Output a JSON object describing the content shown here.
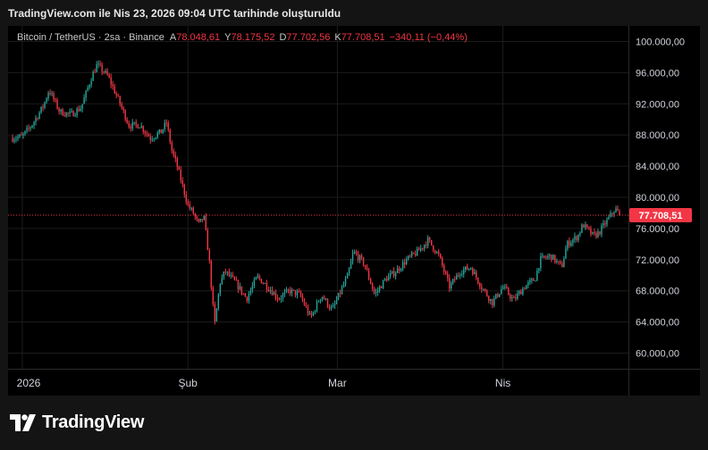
{
  "header": {
    "title": "TradingView.com ile Nis 23, 2026 09:04 UTC tarihinde oluşturuldu"
  },
  "legend": {
    "symbol": "Bitcoin / TetherUS · 2sa · Binance",
    "open_label": "A",
    "open": "78.048,61",
    "high_label": "Y",
    "high": "78.175,52",
    "low_label": "D",
    "low": "77.702,56",
    "close_label": "K",
    "close": "77.708,51",
    "change": "−340,11 (−0,44%)"
  },
  "colors": {
    "up": "#26a69a",
    "down": "#f23645",
    "background": "#000000",
    "page": "#141414"
  },
  "chart_data": {
    "type": "candlestick",
    "ylim": [
      58000,
      102000
    ],
    "y_ticks": [
      60000,
      64000,
      68000,
      72000,
      76000,
      80000,
      84000,
      88000,
      92000,
      96000,
      100000
    ],
    "y_tick_labels": [
      "60.000,00",
      "64.000,00",
      "68.000,00",
      "72.000,00",
      "76.000,00",
      "80.000,00",
      "84.000,00",
      "88.000,00",
      "92.000,00",
      "96.000,00",
      "100.000,00"
    ],
    "x_labels": [
      "2026",
      "Şub",
      "Mar",
      "Nis"
    ],
    "x_label_dates": [
      "2026-01-01",
      "2026-02-01",
      "2026-03-01",
      "2026-04-01"
    ],
    "date_range": [
      "2025-12-30",
      "2026-04-23"
    ],
    "last_price": 77708.51,
    "last_price_label": "77.708,51",
    "path": [
      [
        "2025-12-30",
        87600
      ],
      [
        "2026-01-01",
        87800
      ],
      [
        "2026-01-03",
        89500
      ],
      [
        "2026-01-05",
        91800
      ],
      [
        "2026-01-06",
        93800
      ],
      [
        "2026-01-08",
        91000
      ],
      [
        "2026-01-10",
        90600
      ],
      [
        "2026-01-12",
        91500
      ],
      [
        "2026-01-14",
        95500
      ],
      [
        "2026-01-15",
        97000
      ],
      [
        "2026-01-17",
        95600
      ],
      [
        "2026-01-19",
        92500
      ],
      [
        "2026-01-21",
        89200
      ],
      [
        "2026-01-23",
        89300
      ],
      [
        "2026-01-25",
        87600
      ],
      [
        "2026-01-27",
        88400
      ],
      [
        "2026-01-28",
        89600
      ],
      [
        "2026-01-29",
        86000
      ],
      [
        "2026-01-30",
        84000
      ],
      [
        "2026-02-01",
        79000
      ],
      [
        "2026-02-02",
        78000
      ],
      [
        "2026-02-03",
        76500
      ],
      [
        "2026-02-04",
        77500
      ],
      [
        "2026-02-05",
        72000
      ],
      [
        "2026-02-06",
        63500
      ],
      [
        "2026-02-07",
        69000
      ],
      [
        "2026-02-08",
        70500
      ],
      [
        "2026-02-10",
        69000
      ],
      [
        "2026-02-12",
        67000
      ],
      [
        "2026-02-14",
        69800
      ],
      [
        "2026-02-16",
        68500
      ],
      [
        "2026-02-18",
        67000
      ],
      [
        "2026-02-20",
        68000
      ],
      [
        "2026-02-22",
        67500
      ],
      [
        "2026-02-24",
        64500
      ],
      [
        "2026-02-26",
        67500
      ],
      [
        "2026-02-28",
        65500
      ],
      [
        "2026-03-02",
        68500
      ],
      [
        "2026-03-03",
        70000
      ],
      [
        "2026-03-04",
        73000
      ],
      [
        "2026-03-06",
        71500
      ],
      [
        "2026-03-08",
        67500
      ],
      [
        "2026-03-10",
        69500
      ],
      [
        "2026-03-12",
        70500
      ],
      [
        "2026-03-14",
        72000
      ],
      [
        "2026-03-16",
        73000
      ],
      [
        "2026-03-18",
        74500
      ],
      [
        "2026-03-20",
        72500
      ],
      [
        "2026-03-22",
        68500
      ],
      [
        "2026-03-24",
        70500
      ],
      [
        "2026-03-26",
        71000
      ],
      [
        "2026-03-28",
        68500
      ],
      [
        "2026-03-30",
        66500
      ],
      [
        "2026-04-01",
        68500
      ],
      [
        "2026-04-03",
        66800
      ],
      [
        "2026-04-05",
        68500
      ],
      [
        "2026-04-07",
        69500
      ],
      [
        "2026-04-08",
        72000
      ],
      [
        "2026-04-10",
        72500
      ],
      [
        "2026-04-12",
        71000
      ],
      [
        "2026-04-13",
        74000
      ],
      [
        "2026-04-15",
        75000
      ],
      [
        "2026-04-16",
        76500
      ],
      [
        "2026-04-18",
        75000
      ],
      [
        "2026-04-19",
        75500
      ],
      [
        "2026-04-21",
        77500
      ],
      [
        "2026-04-22",
        78500
      ],
      [
        "2026-04-23",
        77708.51
      ]
    ]
  },
  "footer": {
    "brand": "TradingView"
  }
}
